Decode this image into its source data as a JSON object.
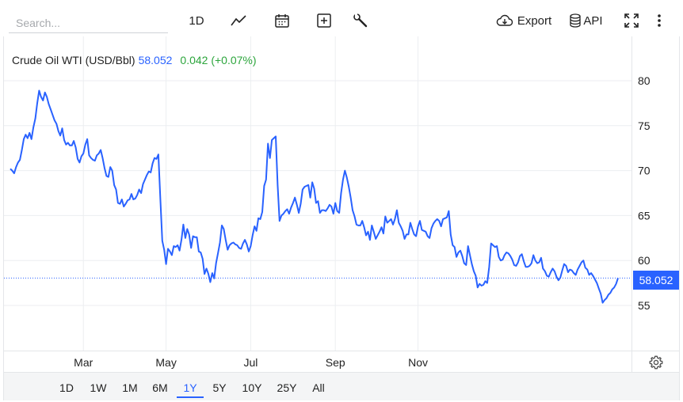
{
  "toolbar": {
    "search_placeholder": "Search...",
    "interval_label": "1D",
    "export_label": "Export",
    "api_label": "API",
    "icons": [
      "line-chart-icon",
      "calendar-icon",
      "add-icon",
      "wrench-icon",
      "cloud-download-icon",
      "database-icon",
      "fullscreen-icon",
      "more-vertical-icon"
    ]
  },
  "legend": {
    "name": "Crude Oil WTI (USD/Bbl)",
    "price": "58.052",
    "change": "0.042 (+0.07%)"
  },
  "last_price_label": "58.052",
  "range_buttons": [
    {
      "label": "1D",
      "active": false
    },
    {
      "label": "1W",
      "active": false
    },
    {
      "label": "1M",
      "active": false
    },
    {
      "label": "6M",
      "active": false
    },
    {
      "label": "1Y",
      "active": true
    },
    {
      "label": "5Y",
      "active": false
    },
    {
      "label": "10Y",
      "active": false
    },
    {
      "label": "25Y",
      "active": false
    },
    {
      "label": "All",
      "active": false
    }
  ],
  "colors": {
    "line": "#2962ff",
    "up": "#2ca53c",
    "grid": "#eceef1"
  },
  "chart_data": {
    "type": "line",
    "title": "",
    "xlabel": "",
    "ylabel": "",
    "y_ticks": [
      55,
      60,
      65,
      70,
      75,
      80
    ],
    "ylim": [
      50,
      85
    ],
    "x_ticks": [
      {
        "label": "Mar",
        "index": 38
      },
      {
        "label": "May",
        "index": 81
      },
      {
        "label": "Jul",
        "index": 125
      },
      {
        "label": "Sep",
        "index": 169
      },
      {
        "label": "Nov",
        "index": 212
      }
    ],
    "last_value": 58.052,
    "grid": true,
    "series": [
      {
        "values": [
          70.2,
          70.0,
          69.7,
          70.4,
          70.9,
          71.2,
          72.3,
          73.5,
          74.0,
          73.6,
          74.2,
          73.5,
          74.8,
          75.8,
          77.5,
          78.9,
          78.2,
          77.8,
          78.7,
          78.2,
          77.4,
          76.8,
          76.2,
          75.6,
          75.2,
          74.4,
          73.9,
          74.7,
          73.4,
          72.9,
          73.1,
          72.8,
          72.8,
          73.3,
          72.6,
          71.3,
          70.9,
          71.6,
          71.9,
          72.9,
          73.5,
          71.7,
          71.4,
          71.2,
          71.1,
          71.7,
          71.9,
          72.3,
          71.4,
          70.3,
          69.4,
          69.3,
          70.4,
          70.0,
          68.4,
          67.9,
          66.4,
          66.3,
          66.8,
          66.0,
          66.3,
          66.7,
          66.8,
          67.4,
          66.8,
          66.9,
          67.3,
          67.9,
          67.5,
          68.5,
          69.0,
          69.5,
          69.9,
          69.8,
          70.8,
          71.4,
          71.3,
          71.8,
          67.0,
          62.2,
          61.2,
          59.6,
          61.3,
          61.0,
          60.6,
          61.6,
          61.5,
          61.7,
          61.1,
          62.3,
          64.0,
          62.5,
          63.5,
          62.9,
          61.4,
          62.7,
          62.6,
          62.6,
          61.0,
          60.9,
          60.2,
          58.5,
          59.1,
          58.5,
          57.6,
          58.6,
          58.0,
          59.7,
          60.8,
          62.0,
          63.9,
          63.5,
          62.3,
          61.2,
          61.7,
          61.9,
          62.0,
          61.8,
          61.7,
          61.4,
          61.3,
          61.9,
          62.3,
          61.8,
          61.0,
          61.6,
          62.8,
          63.8,
          63.3,
          64.7,
          64.6,
          65.4,
          68.3,
          69.0,
          73.0,
          71.4,
          73.4,
          73.6,
          73.8,
          68.4,
          64.4,
          65.0,
          65.2,
          65.5,
          65.7,
          65.2,
          65.9,
          66.4,
          67.0,
          66.2,
          65.3,
          66.3,
          67.9,
          68.2,
          68.3,
          68.4,
          67.0,
          68.7,
          68.0,
          66.4,
          66.6,
          65.3,
          65.6,
          65.6,
          65.5,
          65.8,
          66.2,
          66.0,
          65.2,
          66.4,
          65.5,
          65.3,
          67.5,
          69.0,
          70.0,
          69.2,
          68.2,
          67.0,
          65.6,
          64.9,
          64.0,
          63.9,
          63.9,
          64.4,
          63.7,
          62.8,
          63.2,
          62.3,
          63.9,
          63.2,
          62.4,
          62.8,
          63.2,
          63.7,
          63.0,
          64.9,
          64.2,
          64.4,
          64.6,
          64.0,
          64.6,
          65.6,
          64.2,
          63.8,
          63.3,
          62.4,
          62.9,
          62.9,
          64.2,
          63.5,
          62.9,
          62.7,
          63.8,
          64.4,
          63.4,
          63.3,
          63.2,
          62.7,
          62.5,
          63.6,
          64.1,
          64.4,
          64.6,
          64.4,
          63.8,
          64.6,
          64.7,
          64.8,
          65.5,
          62.9,
          61.7,
          61.5,
          60.4,
          60.9,
          61.1,
          60.5,
          59.7,
          59.5,
          61.6,
          60.6,
          59.6,
          58.8,
          58.3,
          57.0,
          57.4,
          57.2,
          57.3,
          57.7,
          57.5,
          59.3,
          61.9,
          61.7,
          61.5,
          61.6,
          60.4,
          60.0,
          60.1,
          60.6,
          60.9,
          60.8,
          60.5,
          60.1,
          59.5,
          59.4,
          59.8,
          60.5,
          60.7,
          59.9,
          59.3,
          59.3,
          59.4,
          59.7,
          60.6,
          60.0,
          59.7,
          59.8,
          60.3,
          59.1,
          58.8,
          58.3,
          58.2,
          58.7,
          59.1,
          58.8,
          58.2,
          57.8,
          58.1,
          58.9,
          59.6,
          59.4,
          58.7,
          59.0,
          58.9,
          58.6,
          58.4,
          59.0,
          59.4,
          59.8,
          60.0,
          59.2,
          59.0,
          58.4,
          58.6,
          58.3,
          57.9,
          57.5,
          56.9,
          56.3,
          55.3,
          55.6,
          55.8,
          56.2,
          56.4,
          56.8,
          57.0,
          57.4,
          58.052
        ]
      }
    ]
  }
}
